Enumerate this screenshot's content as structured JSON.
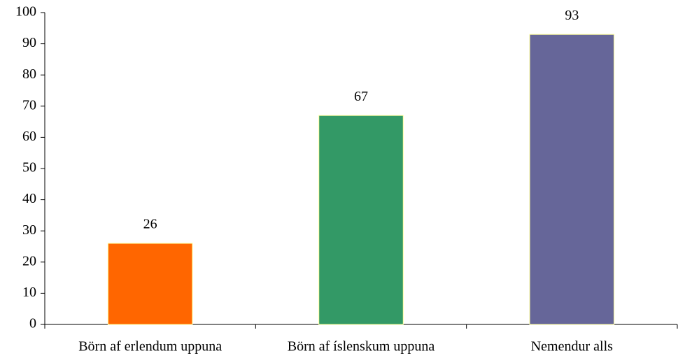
{
  "chart_data": {
    "type": "bar",
    "categories": [
      "Börn af erlendum uppuna",
      "Börn af íslenskum uppuna",
      "Nemendur alls"
    ],
    "values": [
      26,
      67,
      93
    ],
    "colors": [
      "#ff6600",
      "#339966",
      "#666699"
    ],
    "ylim": [
      0,
      100
    ],
    "yticks": [
      0,
      10,
      20,
      30,
      40,
      50,
      60,
      70,
      80,
      90,
      100
    ],
    "grid": false
  }
}
